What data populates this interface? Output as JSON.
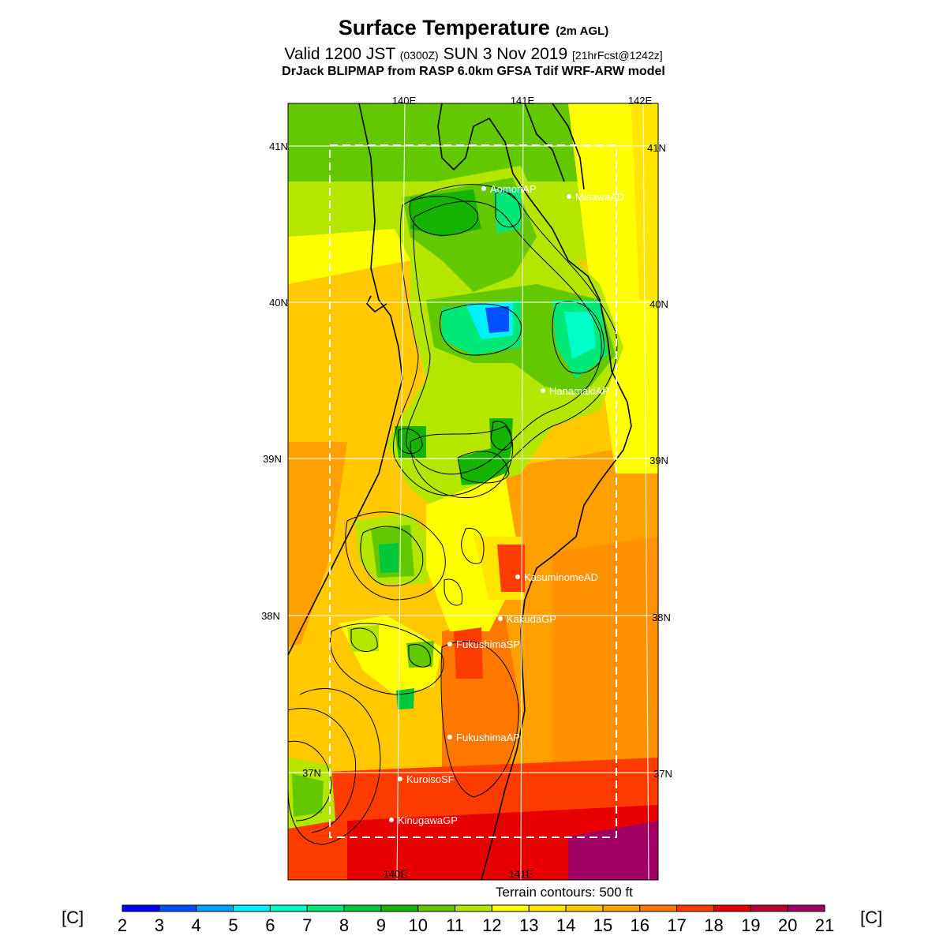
{
  "title": {
    "main": "Surface Temperature",
    "main_suffix": "(2m AGL)",
    "valid_prefix": "Valid 1200 JST",
    "valid_utc": "(0300Z)",
    "valid_date": "SUN 3 Nov 2019",
    "forecast": "[21hrFcst@1242z]",
    "model": "DrJack BLIPMAP from RASP 6.0km GFSA Tdif WRF-ARW model"
  },
  "axes": {
    "lon_labels": [
      "140E",
      "141E",
      "142E"
    ],
    "lat_labels": [
      "41N",
      "40N",
      "39N",
      "38N",
      "37N"
    ]
  },
  "stations": [
    {
      "name": "AomoriAP"
    },
    {
      "name": "MisawaAD"
    },
    {
      "name": "HanamakiAP"
    },
    {
      "name": "KasuminomeAD"
    },
    {
      "name": "KakudaGP"
    },
    {
      "name": "FukushimaSP"
    },
    {
      "name": "FukushimaAP"
    },
    {
      "name": "KuroisoSF"
    },
    {
      "name": "KinugawaGP"
    }
  ],
  "terrain_note": "Terrain contours: 500 ft",
  "colorbar": {
    "unit": "[C]",
    "ticks": [
      "2",
      "3",
      "4",
      "5",
      "6",
      "7",
      "8",
      "9",
      "10",
      "11",
      "12",
      "13",
      "14",
      "15",
      "16",
      "17",
      "18",
      "19",
      "20",
      "21"
    ],
    "colors": [
      "#0000ff",
      "#0050ff",
      "#00a0ff",
      "#00f0ff",
      "#00ffc8",
      "#00e878",
      "#00c83c",
      "#14b400",
      "#64c800",
      "#b4e600",
      "#ffff00",
      "#ffe600",
      "#ffc800",
      "#ffa000",
      "#ff7800",
      "#ff3c00",
      "#e60000",
      "#be0032",
      "#a00064",
      "#780096"
    ]
  }
}
